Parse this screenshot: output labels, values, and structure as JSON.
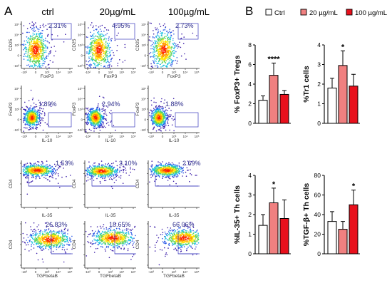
{
  "panel_a": {
    "label": "A",
    "columns": [
      "ctrl",
      "20µg/mL",
      "100µg/mL"
    ],
    "color_palette": [
      "#ff2200",
      "#ff9a00",
      "#ffe600",
      "#5fd35a",
      "#1cc3e0",
      "#2c5ae6",
      "#3a1ca8"
    ],
    "gate_color": "#3b3bbd",
    "rows": [
      {
        "y_label": "CD25",
        "x_label": "FoxP3",
        "y_ticks": [
          "10⁵",
          "10⁴",
          "10³",
          "0",
          "-10²"
        ],
        "x_ticks": [
          "-10²",
          "0",
          "10³",
          "10⁴",
          "10⁵"
        ],
        "percentages": [
          "2.31%",
          "4.95%",
          "2.73%"
        ]
      },
      {
        "y_label": "FoxP3",
        "x_label": "IL-10",
        "y_ticks": [
          "10⁵",
          "10⁴",
          "10³",
          "0",
          "-10²"
        ],
        "x_ticks": [
          "-10²",
          "0",
          "10³",
          "10⁴",
          "10⁵"
        ],
        "percentages": [
          "1.89%",
          "2.94%",
          "1.88%"
        ]
      },
      {
        "y_label": "CD4",
        "x_label": "IL-35",
        "y_ticks": [],
        "x_ticks": [],
        "percentages": [
          "1.53%",
          "3.10%",
          "2.69%"
        ]
      },
      {
        "y_label": "CD4",
        "x_label": "TGFbetaB",
        "y_ticks": [],
        "x_ticks": [
          "-10³",
          "0",
          "10³",
          "10⁴",
          "10⁵"
        ],
        "percentages": [
          "26.83%",
          "18.65%",
          "66.06%"
        ]
      }
    ]
  },
  "panel_b": {
    "label": "B",
    "legend": [
      {
        "name": "Ctrl",
        "color": "#ffffff"
      },
      {
        "name": "20 µg/mL",
        "color": "#f08080"
      },
      {
        "name": "100 µg/mL",
        "color": "#e8101c"
      }
    ]
  },
  "chart_data": [
    {
      "type": "bar",
      "ylabel": "% FoxP3+ Tregs",
      "categories": [
        "Ctrl",
        "20 µg/mL",
        "100 µg/mL"
      ],
      "values": [
        2.35,
        4.9,
        2.95
      ],
      "errors": [
        0.45,
        1.25,
        0.4
      ],
      "ylim": [
        0,
        8
      ],
      "yticks": [
        0,
        2,
        4,
        6,
        8
      ],
      "significance": [
        "",
        "****",
        ""
      ]
    },
    {
      "type": "bar",
      "ylabel": "%Tr1 cells",
      "categories": [
        "Ctrl",
        "20 µg/mL",
        "100 µg/mL"
      ],
      "values": [
        1.8,
        2.95,
        1.9
      ],
      "errors": [
        0.5,
        0.75,
        0.6
      ],
      "ylim": [
        0,
        4
      ],
      "yticks": [
        0,
        1,
        2,
        3,
        4
      ],
      "significance": [
        "",
        "*",
        ""
      ]
    },
    {
      "type": "bar",
      "ylabel": "%IL-35+ Th cells",
      "categories": [
        "Ctrl",
        "20 µg/mL",
        "100 µg/mL"
      ],
      "values": [
        1.45,
        2.6,
        1.8
      ],
      "errors": [
        0.55,
        0.75,
        0.95
      ],
      "ylim": [
        0,
        4
      ],
      "yticks": [
        0,
        1,
        2,
        3,
        4
      ],
      "significance": [
        "",
        "*",
        ""
      ]
    },
    {
      "type": "bar",
      "ylabel": "%TGF-β+ Th cells",
      "categories": [
        "Ctrl",
        "20 µg/mL",
        "100 µg/mL"
      ],
      "values": [
        33,
        25,
        50
      ],
      "errors": [
        10,
        8,
        15
      ],
      "ylim": [
        0,
        80
      ],
      "yticks": [
        0,
        20,
        40,
        60,
        80
      ],
      "significance": [
        "",
        "",
        "*"
      ]
    }
  ]
}
